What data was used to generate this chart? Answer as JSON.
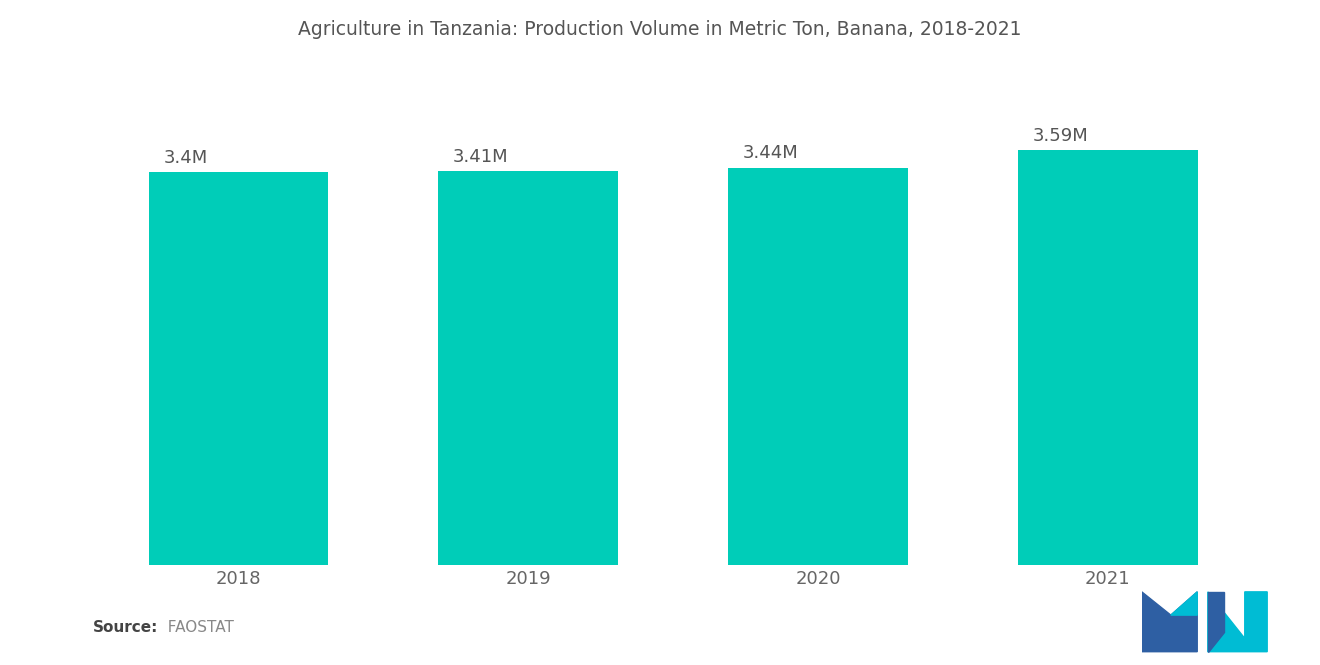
{
  "title": "Agriculture in Tanzania: Production Volume in Metric Ton, Banana, 2018-2021",
  "categories": [
    "2018",
    "2019",
    "2020",
    "2021"
  ],
  "values": [
    3400000,
    3410000,
    3440000,
    3590000
  ],
  "labels": [
    "3.4M",
    "3.41M",
    "3.44M",
    "3.59M"
  ],
  "bar_color": "#00CDB8",
  "background_color": "#ffffff",
  "title_fontsize": 13.5,
  "label_fontsize": 13,
  "tick_fontsize": 13,
  "source_bold": "Source:",
  "source_normal": "  FAOSTAT",
  "ylim": [
    0,
    4200000
  ],
  "bar_width": 0.62,
  "logo_dark_blue": "#2E5FA3",
  "logo_teal": "#00BCD4"
}
